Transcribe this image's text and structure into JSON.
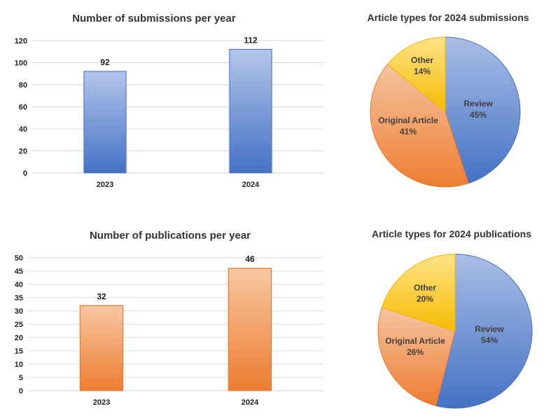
{
  "chart_data": [
    {
      "type": "bar",
      "title": "Number of submissions per year",
      "categories": [
        "2023",
        "2024"
      ],
      "values": [
        92,
        112
      ],
      "ylim": [
        0,
        120
      ],
      "ytick_step": 20,
      "grid": true,
      "color": "#4472c4",
      "xlabel": "",
      "ylabel": ""
    },
    {
      "type": "pie",
      "title": "Article types for 2024 submissions",
      "slices": [
        {
          "name": "Review",
          "value": 45,
          "label": "45%",
          "color": "#4472c4"
        },
        {
          "name": "Original Article",
          "value": 41,
          "label": "41%",
          "color": "#ed7d31"
        },
        {
          "name": "Other",
          "value": 14,
          "label": "14%",
          "color": "#ffc000"
        }
      ]
    },
    {
      "type": "bar",
      "title": "Number of publications per year",
      "categories": [
        "2023",
        "2024"
      ],
      "values": [
        32,
        46
      ],
      "ylim": [
        0,
        50
      ],
      "ytick_step": 5,
      "grid": true,
      "color": "#ed7d31",
      "xlabel": "",
      "ylabel": ""
    },
    {
      "type": "pie",
      "title": "Article types for 2024 publications",
      "slices": [
        {
          "name": "Review",
          "value": 54,
          "label": "54%",
          "color": "#4472c4"
        },
        {
          "name": "Original Article",
          "value": 26,
          "label": "26%",
          "color": "#ed7d31"
        },
        {
          "name": "Other",
          "value": 20,
          "label": "20%",
          "color": "#ffc000"
        }
      ]
    }
  ]
}
